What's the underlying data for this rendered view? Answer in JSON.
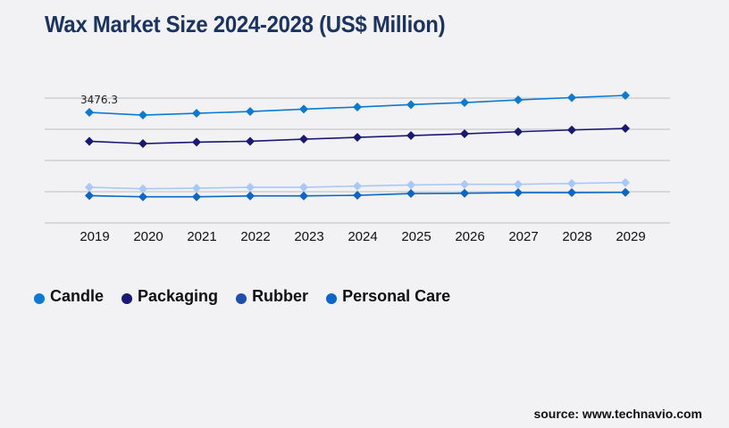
{
  "title": "Wax Market Size 2024-2028 (US$ Million)",
  "source": "source: www.technavio.com",
  "chart_data": {
    "type": "line",
    "title": "Wax Market Size 2024-2028 (US$ Million)",
    "xlabel": "",
    "ylabel": "",
    "categories": [
      "2019",
      "2020",
      "2021",
      "2022",
      "2023",
      "2024",
      "2025",
      "2026",
      "2027",
      "2028",
      "2029"
    ],
    "ylim": [
      0,
      4000
    ],
    "grid": true,
    "y_gridlines": [
      0,
      1000,
      2000,
      3000,
      4000
    ],
    "legend_position": "bottom-left",
    "annotations": [
      {
        "series": "Candle",
        "category": "2019",
        "text": "3476.3"
      }
    ],
    "series": [
      {
        "name": "Candle",
        "color": "#0a7ad4",
        "line_color": "#0a7ad4",
        "values": [
          3476.3,
          3390,
          3447,
          3505,
          3580,
          3648,
          3724,
          3790,
          3876,
          3950,
          4020
        ]
      },
      {
        "name": "Packaging",
        "color": "#1a1875",
        "line_color": "#1a1875",
        "values": [
          2550,
          2476,
          2522,
          2550,
          2619,
          2676,
          2733,
          2790,
          2856,
          2913,
          2962
        ]
      },
      {
        "name": "Rubber",
        "color": "#1f4fae",
        "line_color": "#a8c8f8",
        "values": [
          1076,
          1028,
          1048,
          1076,
          1076,
          1114,
          1151,
          1171,
          1171,
          1199,
          1228
        ]
      },
      {
        "name": "Personal Care",
        "color": "#0a66c8",
        "line_color": "#0a66c8",
        "values": [
          808,
          771,
          771,
          799,
          799,
          819,
          876,
          885,
          905,
          905,
          913
        ]
      }
    ]
  }
}
